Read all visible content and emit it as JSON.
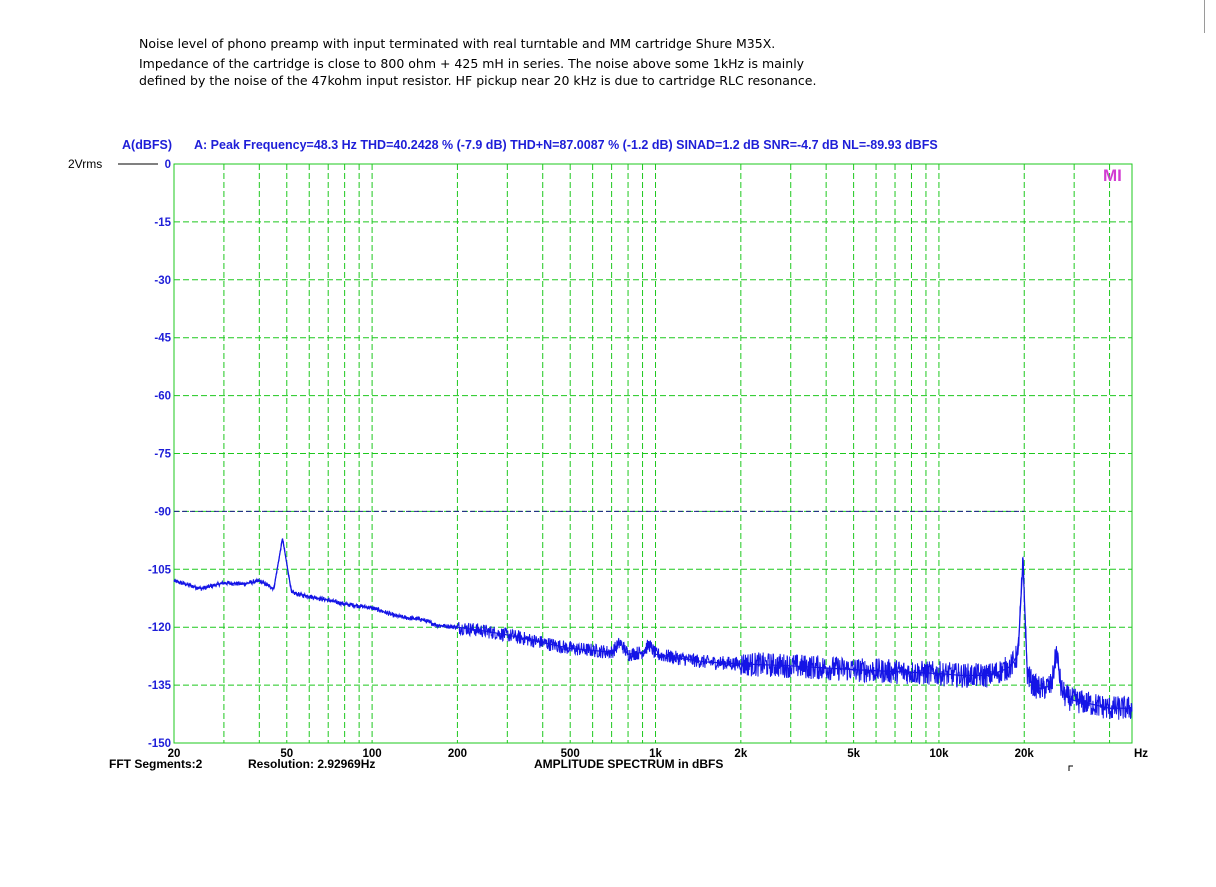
{
  "description": {
    "line1": "Noise level of phono preamp with input terminated with real turntable and MM cartridge Shure M35X.",
    "line2": "Impedance of the cartridge is close to 800 ohm + 425 mH in series. The noise above some 1kHz is mainly",
    "line3": "defined by the noise of the 47kohm input resistor. HF pickup near 20 kHz is due to cartridge RLC resonance."
  },
  "chart_data": {
    "type": "line",
    "title": "A: Peak Frequency=48.3 Hz  THD=40.2428 % (-7.9 dB)  THD+N=87.0087 % (-1.2 dB)  SINAD=1.2 dB  SNR=-4.7 dB  NL=-89.93 dBFS",
    "ylabel": "A(dBFS)",
    "xlabel": "AMPLITUDE SPECTRUM in dBFS",
    "x_unit": "Hz",
    "reference_label": "2Vrms",
    "x_scale": "log",
    "xlim": [
      20,
      48000
    ],
    "ylim": [
      -150,
      0
    ],
    "x_ticks": [
      {
        "value": 20,
        "label": "20"
      },
      {
        "value": 50,
        "label": "50"
      },
      {
        "value": 100,
        "label": "100"
      },
      {
        "value": 200,
        "label": "200"
      },
      {
        "value": 500,
        "label": "500"
      },
      {
        "value": 1000,
        "label": "1k"
      },
      {
        "value": 2000,
        "label": "2k"
      },
      {
        "value": 5000,
        "label": "5k"
      },
      {
        "value": 10000,
        "label": "10k"
      },
      {
        "value": 20000,
        "label": "20k"
      }
    ],
    "y_ticks": [
      {
        "value": 0,
        "label": "0"
      },
      {
        "value": -15,
        "label": "-15"
      },
      {
        "value": -30,
        "label": "-30"
      },
      {
        "value": -45,
        "label": "-45"
      },
      {
        "value": -60,
        "label": "-60"
      },
      {
        "value": -75,
        "label": "-75"
      },
      {
        "value": -90,
        "label": "-90"
      },
      {
        "value": -105,
        "label": "-105"
      },
      {
        "value": -120,
        "label": "-120"
      },
      {
        "value": -135,
        "label": "-135"
      },
      {
        "value": -150,
        "label": "-150"
      }
    ],
    "noise_level_line": {
      "value": -90,
      "x_end": 20000
    },
    "grid": true,
    "series": [
      {
        "color": "#1414e6",
        "x": [
          20,
          25,
          30,
          35,
          40,
          45,
          48.3,
          52,
          55,
          60,
          70,
          80,
          90,
          100,
          110,
          120,
          130,
          150,
          170,
          200,
          250,
          300,
          400,
          500,
          600,
          700,
          750,
          800,
          900,
          950,
          1000,
          1200,
          1500,
          2000,
          3000,
          5000,
          7000,
          10000,
          12000,
          15000,
          17000,
          18000,
          19000,
          19800,
          20500,
          21500,
          23000,
          25000,
          26000,
          27000,
          28000,
          30000,
          35000,
          40000,
          48000
        ],
        "y": [
          -108,
          -110,
          -108.5,
          -108.8,
          -108,
          -110,
          -97,
          -111,
          -111.5,
          -112,
          -113,
          -114,
          -114.5,
          -115,
          -116,
          -117,
          -117.5,
          -118,
          -119.5,
          -120,
          -121,
          -122,
          -124,
          -125.5,
          -126,
          -126.5,
          -124,
          -127,
          -126.5,
          -124.5,
          -127,
          -128,
          -129,
          -129.5,
          -130,
          -131,
          -131.5,
          -132,
          -132.5,
          -132.5,
          -131,
          -130,
          -127,
          -103,
          -132,
          -135,
          -136,
          -135,
          -126,
          -136,
          -138,
          -139,
          -140,
          -141,
          -141
        ]
      }
    ],
    "footer_left": "FFT Segments:2",
    "footer_mid": "Resolution: 2.92969Hz",
    "logo_text": "MI",
    "colors": {
      "grid": "#1ec81e",
      "text": "#1e1ed8",
      "trace": "#1414e6",
      "logo": "#d23cd2"
    }
  }
}
